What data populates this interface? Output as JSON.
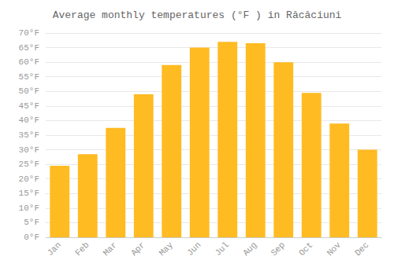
{
  "chart_data": {
    "type": "bar",
    "title": "Average monthly temperatures (°F ) in Răcăciuni",
    "categories": [
      "Jan",
      "Feb",
      "Mar",
      "Apr",
      "May",
      "Jun",
      "Jul",
      "Aug",
      "Sep",
      "Oct",
      "Nov",
      "Dec"
    ],
    "values": [
      24.5,
      28.5,
      37.5,
      49.0,
      59.0,
      65.0,
      67.0,
      66.5,
      60.0,
      49.5,
      39.0,
      30.0
    ],
    "color": "#FFBB22",
    "ylim": [
      0,
      70
    ],
    "yticks": [
      {
        "value": 0,
        "label": "0°F"
      },
      {
        "value": 5,
        "label": "5°F"
      },
      {
        "value": 10,
        "label": "10°F"
      },
      {
        "value": 15,
        "label": "15°F"
      },
      {
        "value": 20,
        "label": "20°F"
      },
      {
        "value": 25,
        "label": "25°F"
      },
      {
        "value": 30,
        "label": "30°F"
      },
      {
        "value": 35,
        "label": "35°F"
      },
      {
        "value": 40,
        "label": "40°F"
      },
      {
        "value": 45,
        "label": "45°F"
      },
      {
        "value": 50,
        "label": "50°F"
      },
      {
        "value": 55,
        "label": "55°F"
      },
      {
        "value": 60,
        "label": "60°F"
      },
      {
        "value": 65,
        "label": "65°F"
      },
      {
        "value": 70,
        "label": "70°F"
      }
    ],
    "grid": true
  }
}
